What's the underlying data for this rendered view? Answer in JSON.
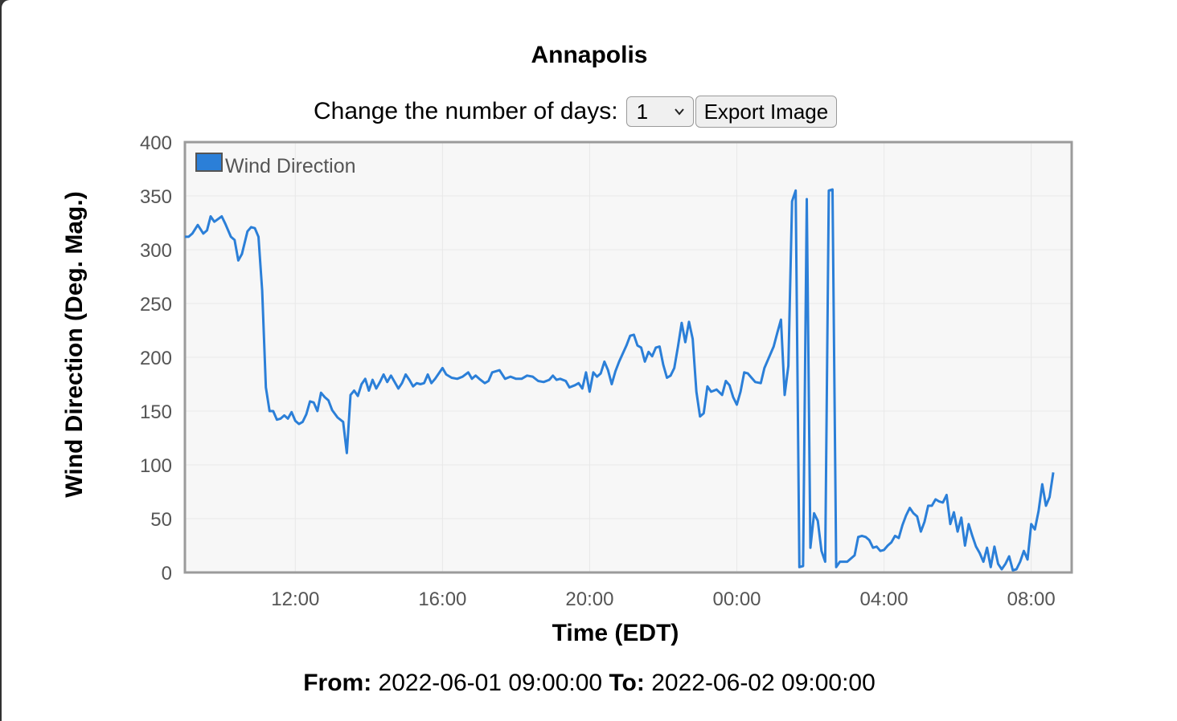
{
  "header": {
    "title": "Annapolis"
  },
  "controls": {
    "days_label": "Change the number of days:",
    "days_value": "1",
    "export_label": "Export Image"
  },
  "footer": {
    "from_label": "From:",
    "from_value": "2022-06-01 09:00:00",
    "to_label": "To:",
    "to_value": "2022-06-02 09:00:00"
  },
  "colors": {
    "series": "#2b7fd8",
    "plot_bg": "#f7f7f7",
    "grid": "#e8e8e8",
    "frame": "#9b9b9b"
  },
  "chart_data": {
    "type": "line",
    "xlabel": "Time (EDT)",
    "ylabel": "Wind Direction (Deg. Mag.)",
    "ylim": [
      0,
      400
    ],
    "yticks": [
      "0",
      "50",
      "100",
      "150",
      "200",
      "250",
      "300",
      "350",
      "400"
    ],
    "xlim": [
      9.0,
      33.1
    ],
    "xticks": [
      {
        "x": 12,
        "label": "12:00"
      },
      {
        "x": 16,
        "label": "16:00"
      },
      {
        "x": 20,
        "label": "20:00"
      },
      {
        "x": 24,
        "label": "00:00"
      },
      {
        "x": 28,
        "label": "04:00"
      },
      {
        "x": 32,
        "label": "08:00"
      }
    ],
    "grid": true,
    "legend": "top-left",
    "series": [
      {
        "name": "Wind Direction",
        "points": [
          [
            9.0,
            312
          ],
          [
            9.1,
            312
          ],
          [
            9.2,
            315
          ],
          [
            9.35,
            323
          ],
          [
            9.5,
            315
          ],
          [
            9.6,
            318
          ],
          [
            9.7,
            331
          ],
          [
            9.8,
            326
          ],
          [
            10.0,
            331
          ],
          [
            10.1,
            324
          ],
          [
            10.25,
            312
          ],
          [
            10.35,
            309
          ],
          [
            10.45,
            290
          ],
          [
            10.55,
            296
          ],
          [
            10.7,
            317
          ],
          [
            10.8,
            321
          ],
          [
            10.9,
            320
          ],
          [
            11.0,
            312
          ],
          [
            11.1,
            262
          ],
          [
            11.2,
            172
          ],
          [
            11.3,
            150
          ],
          [
            11.4,
            150
          ],
          [
            11.5,
            142
          ],
          [
            11.6,
            143
          ],
          [
            11.7,
            146
          ],
          [
            11.8,
            143
          ],
          [
            11.9,
            149
          ],
          [
            12.0,
            141
          ],
          [
            12.1,
            138
          ],
          [
            12.2,
            140
          ],
          [
            12.3,
            147
          ],
          [
            12.4,
            159
          ],
          [
            12.5,
            158
          ],
          [
            12.6,
            150
          ],
          [
            12.7,
            167
          ],
          [
            12.8,
            163
          ],
          [
            12.9,
            160
          ],
          [
            13.0,
            151
          ],
          [
            13.15,
            144
          ],
          [
            13.3,
            140
          ],
          [
            13.4,
            111
          ],
          [
            13.5,
            165
          ],
          [
            13.6,
            169
          ],
          [
            13.7,
            164
          ],
          [
            13.8,
            175
          ],
          [
            13.9,
            180
          ],
          [
            14.0,
            169
          ],
          [
            14.1,
            179
          ],
          [
            14.2,
            171
          ],
          [
            14.3,
            177
          ],
          [
            14.4,
            184
          ],
          [
            14.5,
            177
          ],
          [
            14.6,
            183
          ],
          [
            14.8,
            171
          ],
          [
            14.9,
            176
          ],
          [
            15.0,
            184
          ],
          [
            15.1,
            179
          ],
          [
            15.2,
            173
          ],
          [
            15.3,
            176
          ],
          [
            15.4,
            175
          ],
          [
            15.5,
            176
          ],
          [
            15.6,
            184
          ],
          [
            15.7,
            176
          ],
          [
            15.8,
            180
          ],
          [
            16.0,
            190
          ],
          [
            16.1,
            184
          ],
          [
            16.25,
            181
          ],
          [
            16.4,
            180
          ],
          [
            16.55,
            182
          ],
          [
            16.7,
            186
          ],
          [
            16.8,
            180
          ],
          [
            16.9,
            183
          ],
          [
            17.0,
            180
          ],
          [
            17.15,
            176
          ],
          [
            17.25,
            178
          ],
          [
            17.35,
            186
          ],
          [
            17.55,
            188
          ],
          [
            17.7,
            180
          ],
          [
            17.85,
            182
          ],
          [
            18.0,
            180
          ],
          [
            18.15,
            180
          ],
          [
            18.3,
            183
          ],
          [
            18.45,
            182
          ],
          [
            18.6,
            178
          ],
          [
            18.75,
            177
          ],
          [
            18.9,
            179
          ],
          [
            19.0,
            183
          ],
          [
            19.1,
            179
          ],
          [
            19.2,
            180
          ],
          [
            19.35,
            178
          ],
          [
            19.45,
            172
          ],
          [
            19.6,
            174
          ],
          [
            19.7,
            176
          ],
          [
            19.8,
            171
          ],
          [
            19.9,
            186
          ],
          [
            20.0,
            168
          ],
          [
            20.1,
            186
          ],
          [
            20.2,
            182
          ],
          [
            20.3,
            185
          ],
          [
            20.4,
            196
          ],
          [
            20.5,
            188
          ],
          [
            20.6,
            175
          ],
          [
            20.7,
            187
          ],
          [
            20.8,
            196
          ],
          [
            21.0,
            211
          ],
          [
            21.1,
            220
          ],
          [
            21.2,
            221
          ],
          [
            21.3,
            211
          ],
          [
            21.4,
            209
          ],
          [
            21.5,
            196
          ],
          [
            21.6,
            205
          ],
          [
            21.7,
            201
          ],
          [
            21.8,
            209
          ],
          [
            21.9,
            210
          ],
          [
            22.0,
            193
          ],
          [
            22.1,
            181
          ],
          [
            22.2,
            183
          ],
          [
            22.3,
            190
          ],
          [
            22.4,
            210
          ],
          [
            22.5,
            232
          ],
          [
            22.6,
            214
          ],
          [
            22.7,
            233
          ],
          [
            22.8,
            217
          ],
          [
            22.9,
            168
          ],
          [
            23.0,
            145
          ],
          [
            23.1,
            148
          ],
          [
            23.2,
            173
          ],
          [
            23.3,
            168
          ],
          [
            23.45,
            170
          ],
          [
            23.6,
            165
          ],
          [
            23.7,
            178
          ],
          [
            23.8,
            174
          ],
          [
            23.9,
            163
          ],
          [
            24.0,
            156
          ],
          [
            24.1,
            168
          ],
          [
            24.2,
            186
          ],
          [
            24.3,
            185
          ],
          [
            24.4,
            181
          ],
          [
            24.5,
            177
          ],
          [
            24.65,
            176
          ],
          [
            24.75,
            190
          ],
          [
            24.85,
            198
          ],
          [
            25.0,
            210
          ],
          [
            25.1,
            223
          ],
          [
            25.2,
            235
          ],
          [
            25.3,
            165
          ],
          [
            25.4,
            192
          ],
          [
            25.5,
            345
          ],
          [
            25.6,
            355
          ],
          [
            25.7,
            5
          ],
          [
            25.8,
            6
          ],
          [
            25.9,
            347
          ],
          [
            26.0,
            23
          ],
          [
            26.1,
            55
          ],
          [
            26.2,
            48
          ],
          [
            26.3,
            20
          ],
          [
            26.4,
            10
          ],
          [
            26.5,
            355
          ],
          [
            26.6,
            356
          ],
          [
            26.7,
            5
          ],
          [
            26.8,
            10
          ],
          [
            26.9,
            10
          ],
          [
            27.0,
            10
          ],
          [
            27.1,
            13
          ],
          [
            27.2,
            16
          ],
          [
            27.3,
            33
          ],
          [
            27.4,
            34
          ],
          [
            27.5,
            33
          ],
          [
            27.6,
            30
          ],
          [
            27.7,
            23
          ],
          [
            27.8,
            24
          ],
          [
            27.9,
            20
          ],
          [
            28.0,
            21
          ],
          [
            28.1,
            25
          ],
          [
            28.2,
            28
          ],
          [
            28.3,
            34
          ],
          [
            28.4,
            32
          ],
          [
            28.5,
            44
          ],
          [
            28.6,
            53
          ],
          [
            28.7,
            60
          ],
          [
            28.8,
            55
          ],
          [
            28.9,
            52
          ],
          [
            29.0,
            38
          ],
          [
            29.1,
            47
          ],
          [
            29.2,
            62
          ],
          [
            29.3,
            62
          ],
          [
            29.4,
            68
          ],
          [
            29.5,
            66
          ],
          [
            29.6,
            65
          ],
          [
            29.7,
            72
          ],
          [
            29.8,
            45
          ],
          [
            29.9,
            56
          ],
          [
            30.0,
            38
          ],
          [
            30.1,
            51
          ],
          [
            30.2,
            25
          ],
          [
            30.3,
            45
          ],
          [
            30.4,
            34
          ],
          [
            30.5,
            24
          ],
          [
            30.6,
            18
          ],
          [
            30.7,
            10
          ],
          [
            30.8,
            23
          ],
          [
            30.9,
            5
          ],
          [
            31.0,
            24
          ],
          [
            31.1,
            8
          ],
          [
            31.2,
            3
          ],
          [
            31.3,
            8
          ],
          [
            31.4,
            15
          ],
          [
            31.5,
            2
          ],
          [
            31.6,
            3
          ],
          [
            31.7,
            10
          ],
          [
            31.8,
            20
          ],
          [
            31.9,
            12
          ],
          [
            32.0,
            45
          ],
          [
            32.1,
            40
          ],
          [
            32.2,
            57
          ],
          [
            32.3,
            82
          ],
          [
            32.4,
            62
          ],
          [
            32.5,
            70
          ],
          [
            32.6,
            93
          ]
        ]
      }
    ]
  }
}
